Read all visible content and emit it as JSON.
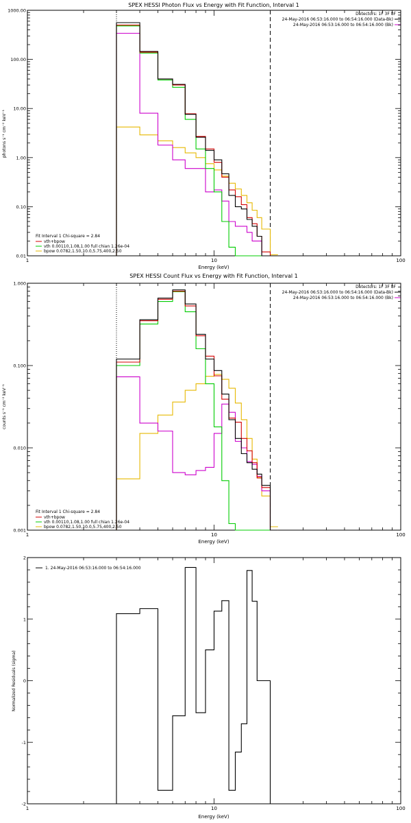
{
  "colors": {
    "fit_total": "#d40000",
    "vth": "#00cc00",
    "bpow": "#e6b800",
    "data": "#000000",
    "background": "#cc00cc",
    "axes": "#000000"
  },
  "chart_data": [
    {
      "type": "line",
      "title": "SPEX HESSI Photon Flux vs Energy with Fit Function, Interval 1",
      "xlabel": "Energy (keV)",
      "ylabel": "photons s⁻¹ cm⁻² keV⁻¹",
      "xscale": "log",
      "yscale": "log",
      "xlim": [
        1,
        100
      ],
      "ylim": [
        0.01,
        1000
      ],
      "x_ticks": [
        "1",
        "10",
        "100"
      ],
      "y_ticks": [
        "0.01",
        "0.10",
        "1.00",
        "10.00",
        "100.00",
        "1000.00"
      ],
      "vlines": [
        {
          "x": 3.0,
          "style": "dotted"
        },
        {
          "x": 20.0,
          "style": "dashed"
        }
      ],
      "legend_topright": {
        "detectors": "Detectors: 1F 3F 8F",
        "entries": [
          {
            "text": "24-May-2016 06:53:16.000 to 06:54:16.000 (Data-Bk)",
            "color": "#000000"
          },
          {
            "text": "24-May-2016 06:53:16.000 to 06:54:16.000 (Bk)",
            "color": "#cc00cc"
          }
        ]
      },
      "legend_bottomleft": {
        "header": "Fit Interval 1   Chi-square = 2.84",
        "entries": [
          {
            "text": "vth+bpow",
            "color": "#d40000"
          },
          {
            "text": "vth 0.00110,1.08,1.00  full chian 1.26e-04",
            "color": "#00cc00"
          },
          {
            "text": "bpow 0.0782,1.50,10.0,5.75,400,2.50",
            "color": "#e6b800"
          }
        ]
      },
      "edges": [
        3.0,
        4.0,
        5.0,
        6.0,
        7.0,
        8.0,
        9.0,
        10.0,
        11.0,
        12.0,
        13.0,
        14.0,
        15.0,
        16.0,
        17.0,
        18.0,
        20.0,
        22.0
      ],
      "series": [
        {
          "key": "data",
          "color": "#000000",
          "values": [
            560,
            145,
            40,
            31,
            7.6,
            2.6,
            1.4,
            0.9,
            0.47,
            0.17,
            0.1,
            0.09,
            0.055,
            0.04,
            0.025,
            0.0085,
            0.0
          ]
        },
        {
          "key": "fit_total",
          "color": "#d40000",
          "values": [
            500,
            140,
            40,
            30,
            7.8,
            2.7,
            1.5,
            0.8,
            0.4,
            0.22,
            0.16,
            0.11,
            0.06,
            0.045,
            0.025,
            0.012,
            0.0
          ]
        },
        {
          "key": "vth",
          "color": "#00cc00",
          "values": [
            480,
            135,
            38,
            27,
            6.0,
            1.5,
            0.6,
            0.2,
            0.05,
            0.015,
            0.0,
            0.0,
            0.0,
            0.0,
            0.0,
            0.0,
            0.0
          ]
        },
        {
          "key": "bpow",
          "color": "#e6b800",
          "values": [
            4.2,
            2.9,
            2.2,
            1.6,
            1.25,
            1.0,
            0.75,
            0.56,
            0.42,
            0.3,
            0.23,
            0.17,
            0.12,
            0.085,
            0.06,
            0.035,
            0.0105
          ]
        },
        {
          "key": "background",
          "color": "#cc00cc",
          "values": [
            340,
            8.0,
            1.8,
            0.9,
            0.6,
            0.6,
            0.2,
            0.22,
            0.13,
            0.05,
            0.04,
            0.04,
            0.03,
            0.02,
            0.02,
            0.0,
            0.0
          ]
        }
      ]
    },
    {
      "type": "line",
      "title": "SPEX HESSI Count Flux vs Energy with Fit Function, Interval 1",
      "xlabel": "Energy (keV)",
      "ylabel": "counts s⁻¹ cm⁻² keV⁻¹",
      "xscale": "log",
      "yscale": "log",
      "xlim": [
        1,
        100
      ],
      "ylim": [
        0.001,
        1.0
      ],
      "x_ticks": [
        "1",
        "10",
        "100"
      ],
      "y_ticks": [
        "0.001",
        "0.010",
        "0.100",
        "1.000"
      ],
      "vlines": [
        {
          "x": 3.0,
          "style": "dotted"
        },
        {
          "x": 20.0,
          "style": "dashed"
        }
      ],
      "legend_topright": {
        "detectors": "Detectors: 1F 3F 8F",
        "entries": [
          {
            "text": "24-May-2016 06:53:16.000 to 06:54:16.000 (Data-Bk)",
            "color": "#000000"
          },
          {
            "text": "24-May-2016 06:53:16.000 to 06:54:16.000 (Bk)",
            "color": "#cc00cc"
          }
        ]
      },
      "legend_bottomleft": {
        "header": "Fit Interval 1   Chi-square = 2.84",
        "entries": [
          {
            "text": "vth+bpow",
            "color": "#d40000"
          },
          {
            "text": "vth 0.00110,1.08,1.00  full chian 1.26e-04",
            "color": "#00cc00"
          },
          {
            "text": "bpow 0.0782,1.50,10.0,5.75,400,2.50",
            "color": "#e6b800"
          }
        ]
      },
      "edges": [
        3.0,
        4.0,
        5.0,
        6.0,
        7.0,
        8.0,
        9.0,
        10.0,
        11.0,
        12.0,
        13.0,
        14.0,
        15.0,
        16.0,
        17.0,
        18.0,
        20.0,
        22.0
      ],
      "series": [
        {
          "key": "data",
          "color": "#000000",
          "values": [
            0.12,
            0.36,
            0.66,
            0.83,
            0.56,
            0.24,
            0.12,
            0.087,
            0.045,
            0.022,
            0.013,
            0.0085,
            0.0066,
            0.0055,
            0.0048,
            0.0035,
            0.0
          ]
        },
        {
          "key": "fit_total",
          "color": "#d40000",
          "values": [
            0.11,
            0.35,
            0.64,
            0.8,
            0.53,
            0.23,
            0.13,
            0.075,
            0.039,
            0.023,
            0.0205,
            0.013,
            0.0092,
            0.0066,
            0.0043,
            0.0033,
            0.0
          ]
        },
        {
          "key": "vth",
          "color": "#00cc00",
          "values": [
            0.1,
            0.32,
            0.6,
            0.79,
            0.45,
            0.16,
            0.06,
            0.018,
            0.004,
            0.0012,
            0.0,
            0.0,
            0.0,
            0.0,
            0.0,
            0.0,
            0.0
          ]
        },
        {
          "key": "bpow",
          "color": "#e6b800",
          "values": [
            0.0042,
            0.015,
            0.025,
            0.036,
            0.05,
            0.06,
            0.074,
            0.078,
            0.068,
            0.053,
            0.035,
            0.022,
            0.013,
            0.0073,
            0.0044,
            0.0026,
            0.0011
          ]
        },
        {
          "key": "background",
          "color": "#cc00cc",
          "values": [
            0.073,
            0.02,
            0.016,
            0.005,
            0.0047,
            0.0053,
            0.0058,
            0.015,
            0.034,
            0.027,
            0.012,
            0.01,
            0.0068,
            0.0063,
            0.0045,
            0.003,
            0.0
          ]
        }
      ]
    },
    {
      "type": "line",
      "title": "",
      "xlabel": "Energy (keV)",
      "ylabel": "Normalized Residuals (sigma)",
      "xscale": "log",
      "yscale": "linear",
      "xlim": [
        1,
        100
      ],
      "ylim": [
        -2,
        2
      ],
      "x_ticks": [
        "1",
        "10",
        "100"
      ],
      "y_ticks": [
        "-2",
        "-1",
        "0",
        "1",
        "2"
      ],
      "legend_topleft": {
        "entries": [
          {
            "text": "1. 24-May-2016 06:53:16.000 to 06:54:16.000",
            "color": "#000000"
          }
        ]
      },
      "edges": [
        3.0,
        4.0,
        5.0,
        6.0,
        7.0,
        8.0,
        9.0,
        10.0,
        11.0,
        12.0,
        13.0,
        14.0,
        15.0,
        16.0,
        17.0,
        18.0,
        20.0
      ],
      "series": [
        {
          "key": "data",
          "color": "#000000",
          "values": [
            1.09,
            1.17,
            -1.78,
            -0.57,
            1.84,
            -0.52,
            0.5,
            1.13,
            1.3,
            -1.78,
            -1.16,
            -0.7,
            1.79,
            1.29,
            0.0,
            0.0
          ]
        }
      ]
    }
  ]
}
